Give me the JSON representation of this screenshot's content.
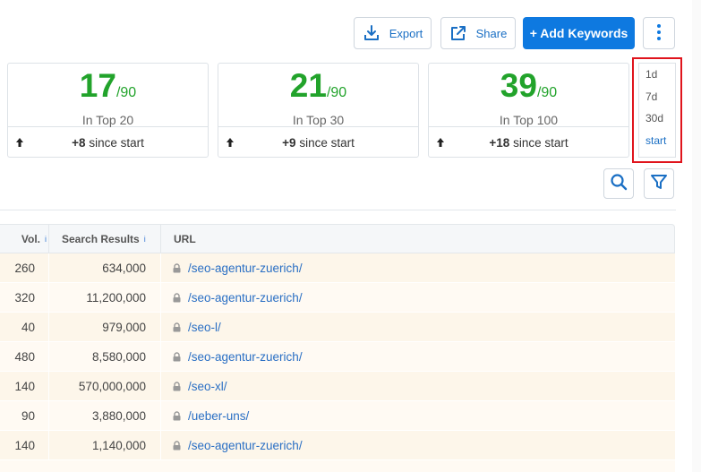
{
  "toolbar": {
    "export_label": "Export",
    "share_label": "Share",
    "add_keywords_label": "+ Add Keywords"
  },
  "stats": [
    {
      "value": "17",
      "total": "/90",
      "label": "In Top 20",
      "delta": "+8",
      "delta_suffix": " since start"
    },
    {
      "value": "21",
      "total": "/90",
      "label": "In Top 30",
      "delta": "+9",
      "delta_suffix": " since start"
    },
    {
      "value": "39",
      "total": "/90",
      "label": "In Top 100",
      "delta": "+18",
      "delta_suffix": " since start"
    }
  ],
  "period": {
    "options": [
      "1d",
      "7d",
      "30d",
      "start"
    ],
    "selected": "start"
  },
  "table": {
    "headers": {
      "vol": "Vol.",
      "vol_info": "i",
      "search_results": "Search Results",
      "search_results_info": "i",
      "url": "URL"
    },
    "rows": [
      {
        "vol": "260",
        "search_results": "634,000",
        "url": "/seo-agentur-zuerich/"
      },
      {
        "vol": "320",
        "search_results": "11,200,000",
        "url": "/seo-agentur-zuerich/"
      },
      {
        "vol": "40",
        "search_results": "979,000",
        "url": "/seo-l/"
      },
      {
        "vol": "480",
        "search_results": "8,580,000",
        "url": "/seo-agentur-zuerich/"
      },
      {
        "vol": "140",
        "search_results": "570,000,000",
        "url": "/seo-xl/"
      },
      {
        "vol": "90",
        "search_results": "3,880,000",
        "url": "/ueber-uns/"
      },
      {
        "vol": "140",
        "search_results": "1,140,000",
        "url": "/seo-agentur-zuerich/"
      }
    ]
  },
  "colors": {
    "accent": "#0e79e0",
    "positive": "#22a32b",
    "link": "#2a6fc4",
    "highlight_border": "#e0141c",
    "row_bg": "#fdf6ea"
  }
}
